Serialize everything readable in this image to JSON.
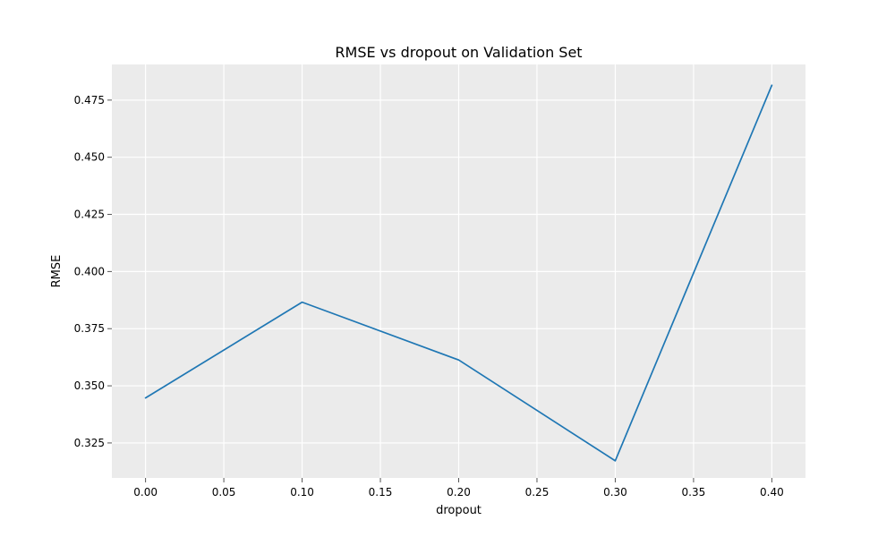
{
  "chart_data": {
    "type": "line",
    "title": "RMSE vs dropout on Validation Set",
    "xlabel": "dropout",
    "ylabel": "RMSE",
    "xlim": [
      -0.0215,
      0.4215
    ],
    "ylim": [
      0.3097,
      0.4906
    ],
    "xticks": [
      0.0,
      0.05,
      0.1,
      0.15,
      0.2,
      0.25,
      0.3,
      0.35,
      0.4
    ],
    "xtick_labels": [
      "0.00",
      "0.05",
      "0.10",
      "0.15",
      "0.20",
      "0.25",
      "0.30",
      "0.35",
      "0.40"
    ],
    "yticks": [
      0.325,
      0.35,
      0.375,
      0.4,
      0.425,
      0.45,
      0.475
    ],
    "ytick_labels": [
      "0.325",
      "0.350",
      "0.375",
      "0.400",
      "0.425",
      "0.450",
      "0.475"
    ],
    "grid": true,
    "background": "#ebebeb",
    "series": [
      {
        "color": "#1f77b4",
        "x": [
          0.0,
          0.1,
          0.2,
          0.3,
          0.4
        ],
        "y": [
          0.3447,
          0.3866,
          0.3613,
          0.3172,
          0.4815
        ]
      }
    ]
  }
}
